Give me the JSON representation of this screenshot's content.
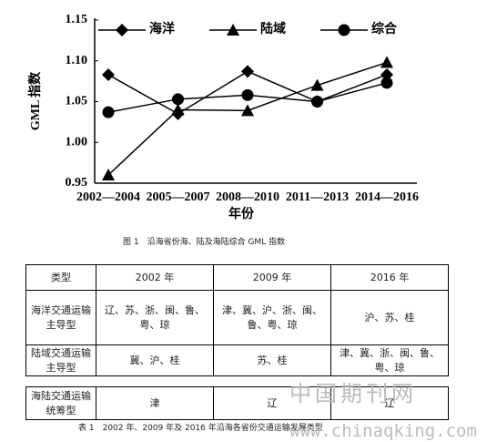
{
  "chart_data": {
    "type": "line",
    "xlabel": "年份",
    "ylabel": "GML 指数",
    "categories": [
      "2002—2004",
      "2005—2007",
      "2008—2010",
      "2011—2013",
      "2014—2016"
    ],
    "series": [
      {
        "name": "海洋",
        "color": "#000000",
        "marker": "diamond",
        "values": [
          1.083,
          1.035,
          1.087,
          1.05,
          1.083
        ]
      },
      {
        "name": "陆域",
        "color": "#000000",
        "marker": "triangle",
        "values": [
          0.96,
          1.04,
          1.039,
          1.07,
          1.098
        ]
      },
      {
        "name": "综合",
        "color": "#000000",
        "marker": "circle",
        "values": [
          1.037,
          1.053,
          1.058,
          1.05,
          1.073
        ]
      }
    ],
    "ylim": [
      0.95,
      1.15
    ],
    "yticks": [
      0.95,
      {
        "value": 1.0,
        "label": "1.00"
      },
      1.05,
      {
        "value": 1.1,
        "label": "1.10"
      },
      1.15
    ],
    "grid": false,
    "legend": "top"
  },
  "figure_caption": "图 1　沿海省份海、陆及海陆综合 GML 指数",
  "table": {
    "header": [
      "类型",
      "2002 年",
      "2009 年",
      "2016 年"
    ],
    "rows": [
      [
        "海洋交通运输主导型",
        "辽、苏、浙、闽、鲁、粤、琼",
        "津、冀、沪、浙、闽、鲁、粤、琼",
        "沪、苏、桂"
      ],
      [
        "陆域交通运输主导型",
        "冀、沪、桂",
        "苏、桂",
        "津、冀、浙、闽、鲁、粤、琼"
      ],
      [
        "海陆交通运输统筹型",
        "津",
        "辽",
        "辽"
      ]
    ],
    "caption": "表 1　2002 年、2009 年及 2016 年沿海各省份交通运输发展类型"
  },
  "watermark": {
    "name": "中国期刊网",
    "url": "www.chinaqking.com"
  }
}
